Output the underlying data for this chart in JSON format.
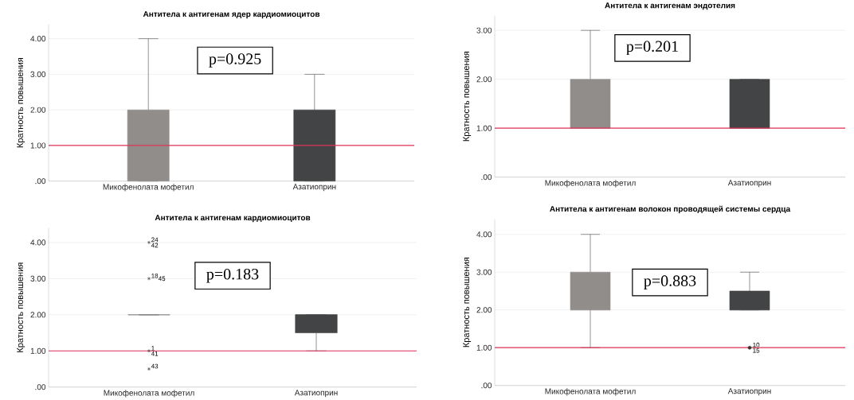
{
  "chart_data": [
    {
      "type": "box",
      "title": "Антитела к антигенам ядер кардиомиоцитов",
      "ylabel": "Кратность повышения",
      "categories": [
        "Микофенолата мофетил",
        "Азатиоприн"
      ],
      "colors": [
        "#918d8b",
        "#434445"
      ],
      "boxes": [
        {
          "low": 0,
          "q1": 0,
          "median": 1,
          "q3": 2,
          "high": 4
        },
        {
          "low": 0,
          "q1": 0,
          "median": 1,
          "q3": 2,
          "high": 3
        }
      ],
      "ylim": [
        0,
        4.4
      ],
      "yticks": [
        {
          "value": 0,
          "label": ".00"
        },
        {
          "value": 1,
          "label": "1.00"
        },
        {
          "value": 2,
          "label": "2.00"
        },
        {
          "value": 3,
          "label": "3.00"
        },
        {
          "value": 4,
          "label": "4.00"
        }
      ],
      "grid": "y",
      "ref_lines": [
        {
          "axis": "y",
          "value": 1,
          "color": "#e0335a"
        }
      ],
      "annotations": [
        "p=0.925"
      ]
    },
    {
      "type": "box",
      "title": "Антитела к антигенам эндотелия",
      "ylabel": "Кратность повышения",
      "categories": [
        "Микофенолата мофетил",
        "Азатиоприн"
      ],
      "colors": [
        "#918d8b",
        "#434445"
      ],
      "boxes": [
        {
          "low": 1,
          "q1": 1,
          "median": 1,
          "q3": 2,
          "high": 3
        },
        {
          "low": 1,
          "q1": 1,
          "median": 1,
          "q3": 2,
          "high": 2
        }
      ],
      "ylim": [
        0,
        3.3
      ],
      "yticks": [
        {
          "value": 0,
          "label": ".00"
        },
        {
          "value": 1,
          "label": "1.00"
        },
        {
          "value": 2,
          "label": "2.00"
        },
        {
          "value": 3,
          "label": "3.00"
        }
      ],
      "grid": "y",
      "ref_lines": [
        {
          "axis": "y",
          "value": 1,
          "color": "#e0335a"
        }
      ],
      "annotations": [
        "p=0.201"
      ]
    },
    {
      "type": "box",
      "title": "Антитела к антигенам кардиомиоцитов",
      "ylabel": "Кратность повышения",
      "categories": [
        "Микофенолата мофетил",
        "Азатиоприн"
      ],
      "colors": [
        "#918d8b",
        "#434445"
      ],
      "boxes": [
        {
          "low": 2,
          "q1": 2,
          "median": 2,
          "q3": 2,
          "high": 2,
          "outliers": [
            4,
            3,
            1,
            0.5
          ]
        },
        {
          "low": 1,
          "q1": 1.5,
          "median": 2,
          "q3": 2,
          "high": 2
        }
      ],
      "ylim": [
        0,
        4.4
      ],
      "yticks": [
        {
          "value": 0,
          "label": ".00"
        },
        {
          "value": 1,
          "label": "1.00"
        },
        {
          "value": 2,
          "label": "2.00"
        },
        {
          "value": 3,
          "label": "3.00"
        },
        {
          "value": 4,
          "label": "4.00"
        }
      ],
      "grid": "y",
      "marker": "star",
      "ref_lines": [
        {
          "axis": "y",
          "value": 1,
          "color": "#e0335a"
        }
      ],
      "annotations": [
        "p=0.183",
        "24",
        "42",
        "18",
        "45",
        "1",
        "41",
        "43"
      ]
    },
    {
      "type": "box",
      "title": "Антитела к антигенам волокон проводящей системы сердца",
      "ylabel": "Кратность повышения",
      "categories": [
        "Микофенолата мофетил",
        "Азатиоприн"
      ],
      "colors": [
        "#918d8b",
        "#434445"
      ],
      "boxes": [
        {
          "low": 1,
          "q1": 2,
          "median": 2,
          "q3": 3,
          "high": 4
        },
        {
          "low": 2,
          "q1": 2,
          "median": 2,
          "q3": 2.5,
          "high": 3,
          "outliers": [
            1
          ]
        }
      ],
      "ylim": [
        0,
        4.4
      ],
      "yticks": [
        {
          "value": 0,
          "label": ".00"
        },
        {
          "value": 1,
          "label": "1.00"
        },
        {
          "value": 2,
          "label": "2.00"
        },
        {
          "value": 3,
          "label": "3.00"
        },
        {
          "value": 4,
          "label": "4.00"
        }
      ],
      "grid": "y",
      "marker": "circle",
      "ref_lines": [
        {
          "axis": "y",
          "value": 1,
          "color": "#e0335a"
        }
      ],
      "annotations": [
        "p=0.883",
        "10",
        "15"
      ]
    }
  ]
}
